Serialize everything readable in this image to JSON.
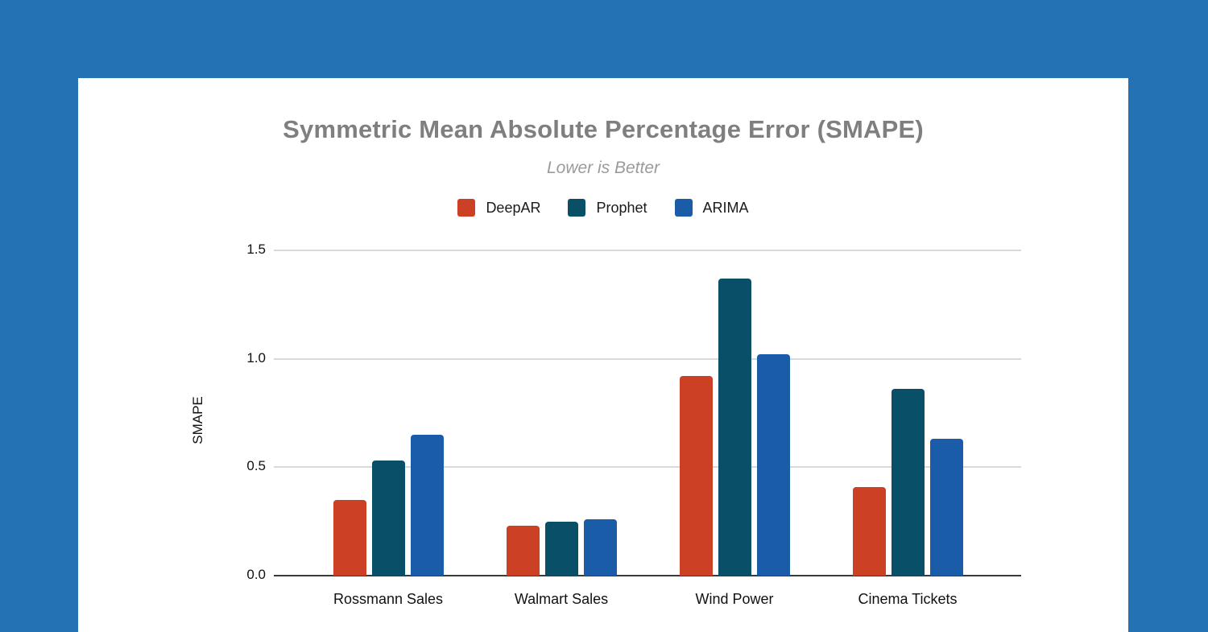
{
  "page": {
    "background_color": "#2472B3",
    "card_color": "#FFFFFF"
  },
  "chart_data": {
    "type": "bar",
    "title": "Symmetric Mean Absolute Percentage Error (SMAPE)",
    "subtitle": "Lower is Better",
    "ylabel": "SMAPE",
    "xlabel": "",
    "categories": [
      "Rossmann Sales",
      "Walmart Sales",
      "Wind Power",
      "Cinema Tickets"
    ],
    "series": [
      {
        "name": "DeepAR",
        "color": "#CC4125",
        "values": [
          0.35,
          0.23,
          0.92,
          0.41
        ]
      },
      {
        "name": "Prophet",
        "color": "#0A4F68",
        "values": [
          0.53,
          0.25,
          1.37,
          0.86
        ]
      },
      {
        "name": "ARIMA",
        "color": "#1A5CA8",
        "values": [
          0.65,
          0.26,
          1.02,
          0.63
        ]
      }
    ],
    "yticks": [
      0.0,
      0.5,
      1.0,
      1.5
    ],
    "ytick_labels": [
      "0.0",
      "0.5",
      "1.0",
      "1.5"
    ],
    "ylim": [
      0,
      1.5
    ],
    "grid": true,
    "legend_position": "top",
    "colors": {
      "title": "#7F7F7F",
      "subtitle": "#9B9B9B",
      "gridline": "#D9D9D9",
      "axis_line": "#3A3A3A",
      "label": "#111111"
    }
  }
}
